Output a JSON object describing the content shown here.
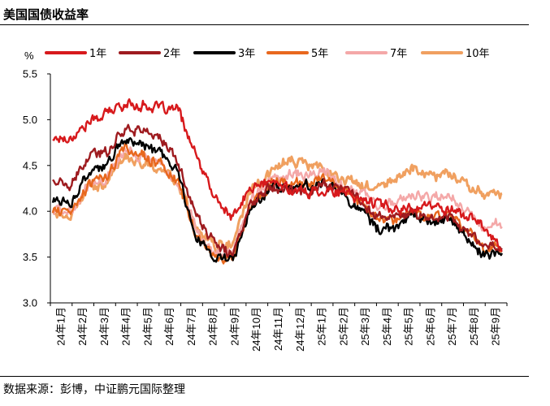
{
  "title": "美国国债收益率",
  "source": "数据来源：彭博，中证鹏元国际整理",
  "chart_data": {
    "type": "line",
    "unit_label": "%",
    "ylim": [
      3.0,
      5.5
    ],
    "yticks": [
      "5.5",
      "5.0",
      "4.5",
      "4.0",
      "3.5",
      "3.0"
    ],
    "ytick_values": [
      5.5,
      5.0,
      4.5,
      4.0,
      3.5,
      3.0
    ],
    "categories": [
      "24年1月",
      "24年2月",
      "24年3月",
      "24年4月",
      "24年5月",
      "24年6月",
      "24年7月",
      "24年8月",
      "24年9月",
      "24年10月",
      "24年11月",
      "24年12月",
      "25年1月",
      "25年2月",
      "25年3月",
      "25年4月",
      "25年5月",
      "25年6月",
      "25年7月",
      "25年8月",
      "25年9月"
    ],
    "grid": false,
    "legend_placement": "top",
    "series": [
      {
        "name": "1年",
        "color": "#d7191c",
        "anchors": [
          4.8,
          4.8,
          4.97,
          5.07,
          5.17,
          5.16,
          5.12,
          5.1,
          4.58,
          4.15,
          3.92,
          4.25,
          4.32,
          4.26,
          4.2,
          4.24,
          4.2,
          4.14,
          4.1,
          4.02,
          4.05,
          4.06,
          4.03,
          3.96,
          3.82,
          3.62
        ]
      },
      {
        "name": "2年",
        "color": "#9e1b1f",
        "anchors": [
          4.35,
          4.25,
          4.6,
          4.65,
          4.92,
          4.88,
          4.8,
          4.52,
          3.95,
          3.64,
          3.52,
          4.08,
          4.3,
          4.25,
          4.2,
          4.3,
          4.25,
          4.15,
          3.95,
          3.92,
          3.98,
          3.92,
          3.95,
          3.8,
          3.62,
          3.62
        ]
      },
      {
        "name": "3年",
        "color": "#000000",
        "anchors": [
          4.12,
          4.1,
          4.4,
          4.5,
          4.8,
          4.72,
          4.62,
          4.4,
          3.72,
          3.5,
          3.45,
          4.02,
          4.25,
          4.3,
          4.25,
          4.32,
          4.22,
          4.05,
          3.82,
          3.8,
          3.95,
          3.88,
          3.92,
          3.72,
          3.52,
          3.55
        ]
      },
      {
        "name": "5年",
        "color": "#e8681e",
        "anchors": [
          4.0,
          3.98,
          4.3,
          4.38,
          4.7,
          4.6,
          4.52,
          4.3,
          3.72,
          3.5,
          3.48,
          4.05,
          4.28,
          4.32,
          4.28,
          4.38,
          4.25,
          4.12,
          3.92,
          3.9,
          4.0,
          3.95,
          3.98,
          3.8,
          3.58,
          3.62
        ]
      },
      {
        "name": "7年",
        "color": "#f4a8a8",
        "anchors": [
          4.02,
          4.0,
          4.28,
          4.38,
          4.68,
          4.6,
          4.52,
          4.32,
          3.78,
          3.55,
          3.55,
          4.12,
          4.32,
          4.4,
          4.38,
          4.45,
          4.32,
          4.2,
          4.05,
          4.08,
          4.18,
          4.15,
          4.18,
          4.02,
          3.82,
          3.85
        ]
      },
      {
        "name": "10年",
        "color": "#f0a060",
        "anchors": [
          4.0,
          3.95,
          4.25,
          4.3,
          4.62,
          4.5,
          4.45,
          4.28,
          3.82,
          3.62,
          3.65,
          4.22,
          4.4,
          4.55,
          4.5,
          4.48,
          4.35,
          4.3,
          4.25,
          4.35,
          4.48,
          4.38,
          4.42,
          4.3,
          4.18,
          4.15
        ]
      }
    ]
  }
}
